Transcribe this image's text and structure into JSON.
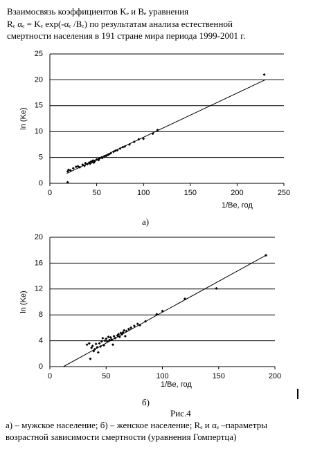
{
  "header": {
    "lines": [
      "Взаимосвязь коэффициентов Kₑ и Bₑ уравнения",
      "Rₑ αₑ = Kₑ exp(-αₑ /Bₑ) по результатам анализа естественной",
      "смертности населения в 191 стране мира периода 1999-2001 г."
    ]
  },
  "chart_data": [
    {
      "type": "scatter",
      "label": "а)",
      "x_label": "1/Be, год",
      "y_label": "ln (Ke)",
      "color": "#000000",
      "grid": true,
      "xlim": [
        0,
        250
      ],
      "xticks": [
        0,
        50,
        100,
        150,
        200,
        250
      ],
      "ylim": [
        0,
        25
      ],
      "yticks": [
        0,
        5,
        10,
        15,
        20,
        25
      ],
      "x": [
        19,
        19,
        20,
        22,
        25,
        28,
        30,
        32,
        35,
        37,
        38,
        40,
        42,
        43,
        44,
        45,
        46,
        47,
        48,
        50,
        52,
        53,
        55,
        56,
        58,
        60,
        62,
        63,
        65,
        68,
        70,
        72,
        75,
        78,
        80,
        85,
        90,
        95,
        100,
        110,
        115,
        229
      ],
      "values": [
        0.2,
        2.3,
        2.6,
        2.5,
        2.9,
        3.2,
        3.3,
        3.1,
        3.6,
        3.4,
        3.9,
        3.7,
        4.0,
        3.8,
        4.2,
        4.1,
        4.4,
        4.0,
        4.3,
        4.6,
        4.5,
        4.8,
        5.0,
        4.9,
        5.2,
        5.3,
        5.5,
        5.6,
        5.8,
        6.1,
        6.3,
        6.4,
        6.7,
        7.0,
        7.1,
        7.5,
        8.0,
        8.5,
        8.6,
        9.6,
        10.3,
        21.0
      ],
      "trend": {
        "x": [
          18,
          230
        ],
        "values": [
          1.9,
          20
        ]
      }
    },
    {
      "type": "scatter",
      "label": "б)",
      "x_label": "1/Be, год",
      "y_label": "ln (Ke)",
      "color": "#000000",
      "grid": true,
      "xlim": [
        0,
        200
      ],
      "xticks": [
        0,
        50,
        100,
        150,
        200
      ],
      "ylim": [
        0,
        20
      ],
      "yticks": [
        0,
        4,
        8,
        12,
        16,
        20
      ],
      "x": [
        33,
        35,
        36,
        37,
        38,
        39,
        40,
        41,
        42,
        43,
        44,
        45,
        46,
        47,
        48,
        49,
        50,
        51,
        52,
        53,
        54,
        55,
        56,
        57,
        58,
        60,
        61,
        62,
        63,
        64,
        65,
        66,
        67,
        68,
        70,
        72,
        75,
        78,
        80,
        85,
        95,
        100,
        120,
        148,
        192
      ],
      "values": [
        3.4,
        3.6,
        1.2,
        2.9,
        3.2,
        2.4,
        2.7,
        3.5,
        3.0,
        2.2,
        3.6,
        3.1,
        3.9,
        4.4,
        3.3,
        4.0,
        4.3,
        3.9,
        4.6,
        4.1,
        4.5,
        4.2,
        3.4,
        4.7,
        4.4,
        4.8,
        5.0,
        4.6,
        5.2,
        5.0,
        5.3,
        5.6,
        4.7,
        5.5,
        5.8,
        6.0,
        6.3,
        6.6,
        6.4,
        7.0,
        8.1,
        8.6,
        10.5,
        12.1,
        17.2
      ],
      "trend": {
        "x": [
          12,
          193
        ],
        "values": [
          0,
          17.3
        ]
      }
    }
  ],
  "caption": {
    "figure": "Рис.4",
    "lines": [
      "а) – мужское население; б) – женское население; Rₑ и αₑ –параметры",
      "возрастной зависимости смертности (уравнения Гомпертца)"
    ]
  }
}
